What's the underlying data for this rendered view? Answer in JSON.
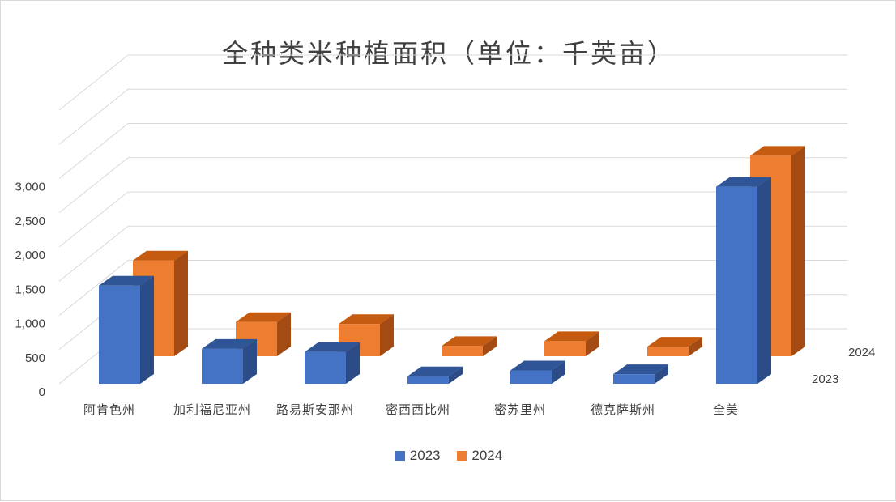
{
  "chart_data": {
    "type": "bar",
    "title": "全种类米种植面积（单位：千英亩）",
    "categories": [
      "阿肯色州",
      "加利福尼亚州",
      "路易斯安那州",
      "密西西比州",
      "密苏里州",
      "德克萨斯州",
      "全美"
    ],
    "series": [
      {
        "name": "2023",
        "values": [
          1435,
          510,
          465,
          110,
          195,
          140,
          2880
        ]
      },
      {
        "name": "2024",
        "values": [
          1400,
          500,
          470,
          150,
          220,
          140,
          2930
        ]
      }
    ],
    "y_ticks": [
      "0",
      "500",
      "1,000",
      "1,500",
      "2,000",
      "2,500",
      "3,000"
    ],
    "ylim": [
      0,
      3500
    ],
    "grid": true,
    "legend_position": "bottom",
    "depth_labels": [
      "2023",
      "2024"
    ],
    "colors": {
      "2023_front": "#4472c4",
      "2023_top": "#2f5597",
      "2023_side": "#2b4c86",
      "2024_front": "#ed7d31",
      "2024_top": "#c55a11",
      "2024_side": "#a34b13",
      "gridline": "#d9d9d9",
      "text": "#404040"
    }
  }
}
